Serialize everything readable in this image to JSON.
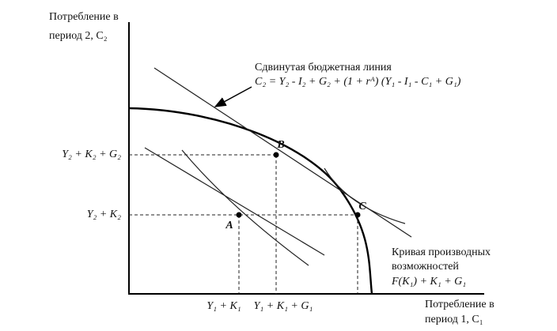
{
  "y_axis_label": [
    "Потребление в",
    "период 2, C₂"
  ],
  "x_axis_label": [
    "Потребление в",
    "период 1, C₁"
  ],
  "budget_line": {
    "title": "Сдвинутая бюджетная линия",
    "formula": "C₂ = Y₂ - I₂ + G₂ + (1 + rᴬ) (Y₁ - I₁ - C₁ + G₁)"
  },
  "y_levels": [
    "Y₂ + K₂ + G₂",
    "Y₂ + K₂"
  ],
  "x_levels": [
    "Y₁ + K₁",
    "Y₁ + K₁ + G₁"
  ],
  "points": [
    "A",
    "B",
    "C"
  ],
  "ppf_label": [
    "Кривая производных",
    "возможностей",
    "F(K₁) + K₁ + G₁"
  ]
}
